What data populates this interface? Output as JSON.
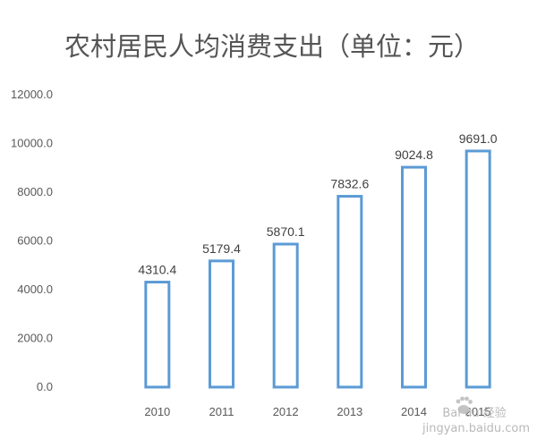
{
  "chart_data": {
    "type": "bar",
    "title": "农村居民人均消费支出（单位：元）",
    "xlabel": "",
    "ylabel": "",
    "categories": [
      "2010",
      "2011",
      "2012",
      "2013",
      "2014",
      "2015"
    ],
    "values": [
      4310.4,
      5179.4,
      5870.1,
      7832.6,
      9024.8,
      9691.0
    ],
    "value_labels": [
      "4310.4",
      "5179.4",
      "5870.1",
      "7832.6",
      "9024.8",
      "9691.0"
    ],
    "ylim": [
      0,
      12000
    ],
    "yticks": [
      0,
      2000,
      4000,
      6000,
      8000,
      10000,
      12000
    ],
    "ytick_labels": [
      "0.0",
      "2000.0",
      "4000.0",
      "6000.0",
      "8000.0",
      "10000.0",
      "12000.0"
    ],
    "grid": false,
    "legend": "none",
    "bar_style": "outline",
    "bar_color": "#5b9bd5"
  },
  "watermark": {
    "line1": "Bai du 经验",
    "line2": "jingyan.baidu.com"
  }
}
